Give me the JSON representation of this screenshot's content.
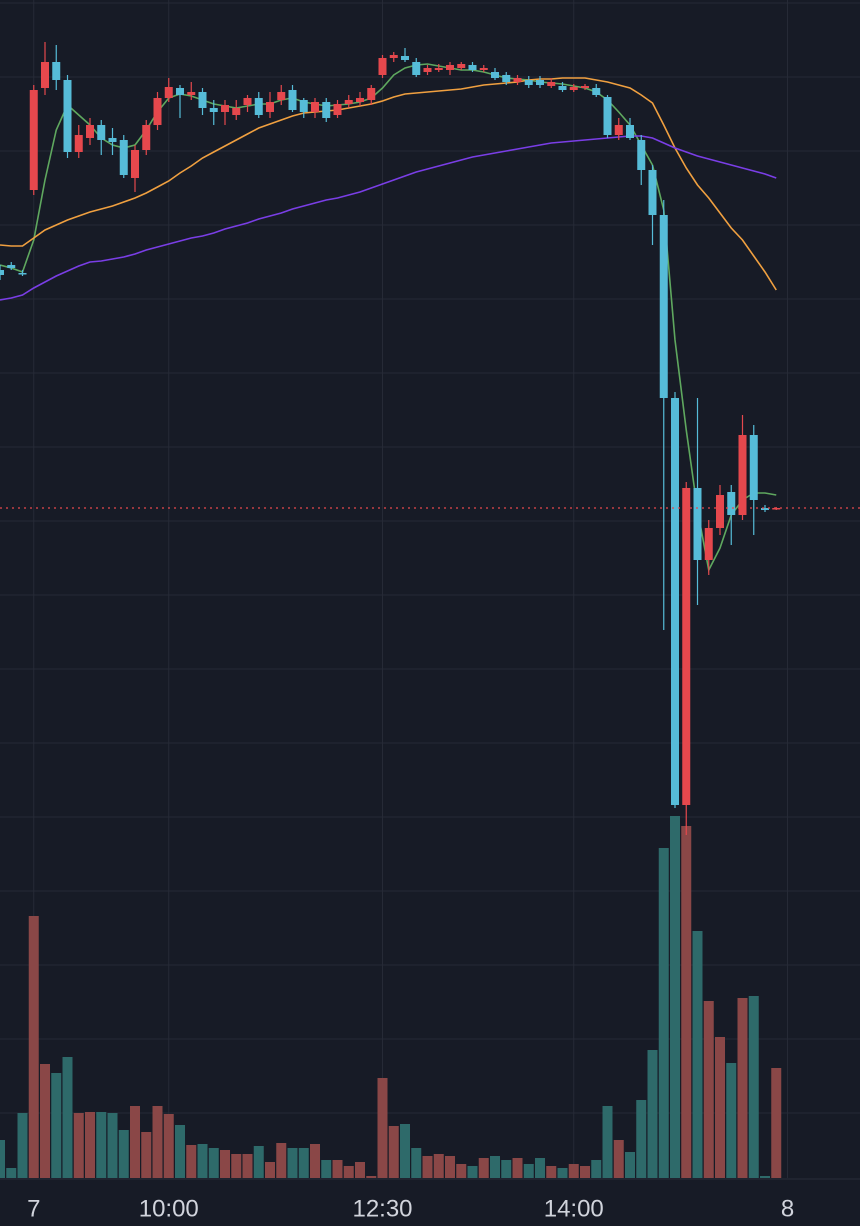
{
  "chart_data": {
    "type": "candlestick",
    "categories": [
      null,
      null,
      null,
      "7",
      null,
      null,
      null,
      null,
      null,
      null,
      null,
      null,
      null,
      null,
      null,
      "10:00",
      null,
      null,
      null,
      null,
      null,
      null,
      null,
      null,
      null,
      null,
      null,
      null,
      null,
      null,
      null,
      null,
      null,
      null,
      "12:30",
      null,
      null,
      null,
      null,
      null,
      null,
      null,
      null,
      null,
      null,
      null,
      null,
      null,
      null,
      null,
      null,
      "14:00",
      null,
      null,
      null,
      null,
      null,
      null,
      null,
      null,
      null,
      null,
      null,
      null,
      null,
      null,
      null,
      null,
      null,
      null,
      "8"
    ],
    "open": [
      730,
      735,
      727,
      810,
      912,
      938,
      920,
      848,
      862,
      875,
      862,
      860,
      822,
      850,
      875,
      902,
      912,
      905,
      908,
      892,
      888,
      885,
      895,
      902,
      888,
      900,
      910,
      900,
      888,
      898,
      885,
      896,
      898,
      900,
      925,
      942,
      944,
      938,
      928,
      930,
      930,
      932,
      935,
      930,
      928,
      925,
      918,
      920,
      920,
      914,
      914,
      910,
      912,
      912,
      903,
      865,
      875,
      860,
      830,
      785,
      602,
      195,
      512,
      440,
      472,
      508,
      485,
      565,
      492,
      491,
      null
    ],
    "high": [
      735,
      738,
      730,
      915,
      958,
      955,
      925,
      875,
      882,
      880,
      872,
      865,
      855,
      880,
      908,
      922,
      915,
      918,
      912,
      900,
      900,
      900,
      905,
      908,
      908,
      915,
      915,
      902,
      902,
      902,
      900,
      905,
      908,
      915,
      945,
      948,
      952,
      942,
      935,
      936,
      938,
      938,
      938,
      935,
      932,
      928,
      925,
      924,
      924,
      922,
      918,
      916,
      916,
      916,
      905,
      882,
      882,
      865,
      835,
      800,
      608,
      518,
      602,
      480,
      515,
      515,
      585,
      575,
      495,
      493,
      null
    ],
    "low": [
      720,
      730,
      724,
      805,
      905,
      910,
      842,
      842,
      855,
      845,
      845,
      822,
      808,
      845,
      870,
      898,
      882,
      900,
      885,
      875,
      875,
      880,
      888,
      882,
      882,
      895,
      888,
      882,
      882,
      878,
      882,
      892,
      894,
      895,
      922,
      938,
      938,
      923,
      925,
      928,
      925,
      930,
      928,
      928,
      920,
      915,
      915,
      912,
      912,
      912,
      908,
      908,
      910,
      903,
      862,
      860,
      860,
      815,
      755,
      370,
      192,
      165,
      395,
      425,
      465,
      455,
      480,
      465,
      488,
      490,
      null
    ],
    "close": [
      725,
      732,
      726,
      910,
      938,
      920,
      848,
      865,
      875,
      860,
      858,
      825,
      850,
      875,
      902,
      913,
      905,
      908,
      892,
      888,
      895,
      892,
      902,
      885,
      898,
      908,
      890,
      888,
      898,
      882,
      896,
      900,
      902,
      912,
      942,
      945,
      940,
      925,
      932,
      932,
      935,
      936,
      930,
      932,
      922,
      918,
      922,
      915,
      915,
      918,
      910,
      913,
      914,
      905,
      865,
      875,
      862,
      830,
      785,
      602,
      195,
      512,
      440,
      472,
      505,
      485,
      565,
      500,
      490,
      492,
      null
    ],
    "volume": [
      38,
      10,
      65,
      262,
      114,
      105,
      121,
      65,
      66,
      66,
      65,
      48,
      72,
      46,
      72,
      64,
      53,
      33,
      34,
      30,
      28,
      24,
      24,
      32,
      16,
      35,
      30,
      30,
      34,
      18,
      18,
      12,
      16,
      2,
      100,
      52,
      54,
      30,
      22,
      24,
      22,
      14,
      12,
      20,
      22,
      18,
      20,
      14,
      20,
      12,
      10,
      14,
      12,
      18,
      72,
      38,
      26,
      78,
      128,
      330,
      362,
      352,
      247,
      177,
      141,
      115,
      180,
      182,
      2,
      110,
      null
    ],
    "lines": [
      {
        "color": "#5fa85f",
        "values": [
          735,
          732,
          728,
          760,
          820,
          870,
          895,
          885,
          875,
          862,
          855,
          852,
          855,
          870,
          888,
          902,
          906,
          904,
          900,
          896,
          894,
          892,
          894,
          896,
          896,
          900,
          902,
          898,
          896,
          894,
          895,
          896,
          898,
          902,
          912,
          925,
          932,
          935,
          936,
          934,
          932,
          930,
          930,
          928,
          925,
          922,
          921,
          920,
          918,
          917,
          916,
          914,
          912,
          908,
          900,
          888,
          875,
          855,
          835,
          790,
          660,
          570,
          490,
          430,
          452,
          485,
          500,
          507,
          507,
          505,
          null
        ]
      },
      {
        "color": "#f0a040",
        "values": [
          755,
          754,
          754,
          762,
          770,
          775,
          780,
          784,
          788,
          791,
          794,
          798,
          802,
          807,
          813,
          819,
          827,
          834,
          842,
          848,
          854,
          860,
          866,
          872,
          876,
          880,
          884,
          887,
          888,
          889,
          890,
          892,
          894,
          896,
          899,
          903,
          906,
          907,
          908,
          909,
          910,
          911,
          913,
          915,
          916,
          917,
          918,
          920,
          921,
          921,
          922,
          922,
          922,
          920,
          918,
          915,
          912,
          905,
          897,
          875,
          852,
          832,
          815,
          802,
          787,
          772,
          760,
          744,
          728,
          710,
          null
        ]
      },
      {
        "color": "#7a3ee6",
        "values": [
          700,
          702,
          705,
          712,
          718,
          724,
          729,
          734,
          738,
          739,
          741,
          743,
          746,
          750,
          753,
          756,
          759,
          762,
          764,
          767,
          771,
          774,
          777,
          781,
          784,
          787,
          791,
          794,
          797,
          800,
          802,
          805,
          808,
          812,
          816,
          820,
          824,
          828,
          831,
          834,
          837,
          840,
          843,
          845,
          847,
          849,
          851,
          853,
          855,
          857,
          858,
          859,
          860,
          861,
          862,
          863,
          864,
          864,
          862,
          857,
          852,
          848,
          844,
          841,
          838,
          835,
          832,
          829,
          826,
          822,
          null
        ]
      }
    ],
    "ylim": [
      0,
      1000
    ],
    "volume_lim": [
      0,
      365
    ],
    "up_color": "#e5484d",
    "down_color": "#56bcd8",
    "volume_up_color": "#8a4747",
    "volume_down_color": "#2e6a6a",
    "grid": true
  }
}
